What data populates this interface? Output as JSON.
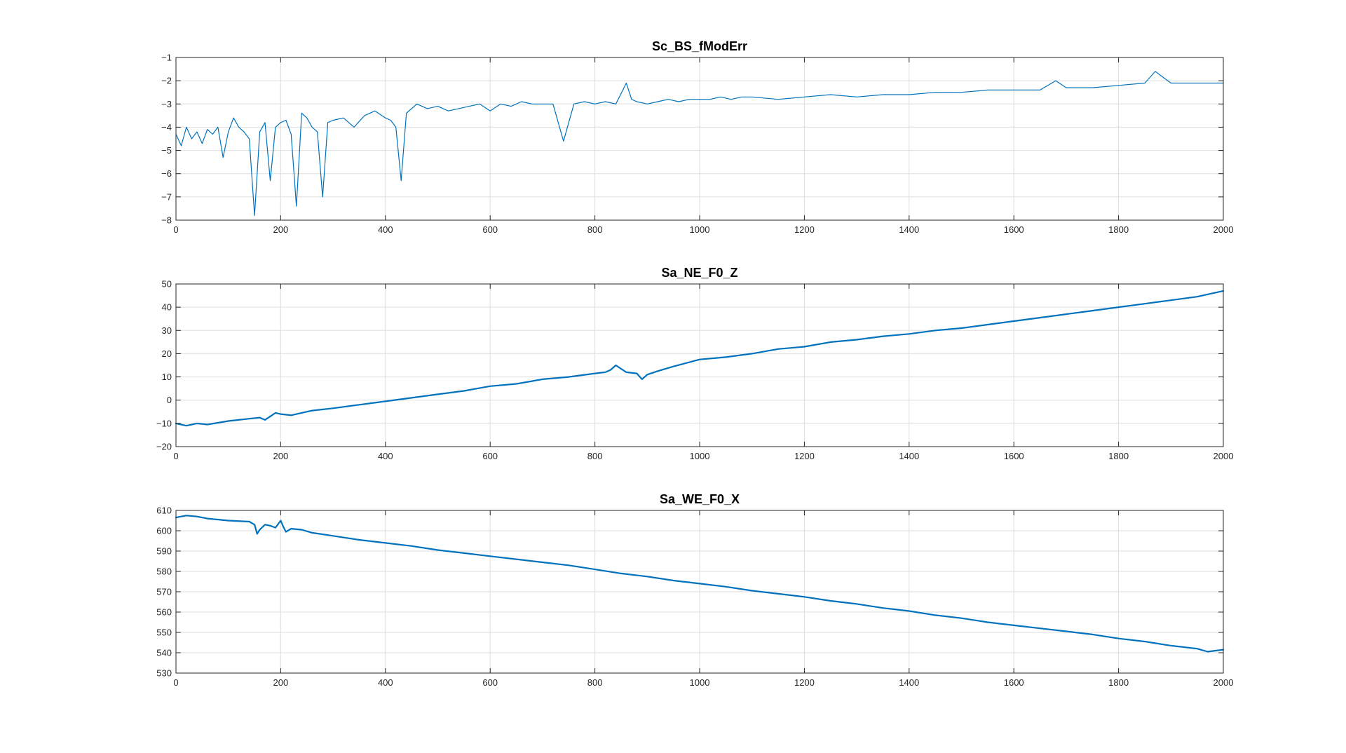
{
  "figure": {
    "background": "#ffffff",
    "line_color": "#0072bd",
    "axis_color": "#262626",
    "grid_color": "#dedede"
  },
  "chart_data": [
    {
      "type": "line",
      "title": "Sc_BS_fModErr",
      "xlabel": "",
      "ylabel": "",
      "xlim": [
        0,
        2000
      ],
      "ylim": [
        -8,
        -1
      ],
      "xticks": [
        0,
        200,
        400,
        600,
        800,
        1000,
        1200,
        1400,
        1600,
        1800,
        2000
      ],
      "yticks": [
        -8,
        -7,
        -6,
        -5,
        -4,
        -3,
        -2,
        -1
      ],
      "grid": true,
      "line_width": 1.2,
      "series": [
        {
          "x": [
            0,
            10,
            20,
            30,
            40,
            50,
            60,
            70,
            80,
            90,
            100,
            110,
            120,
            130,
            140,
            150,
            160,
            170,
            180,
            190,
            200,
            210,
            220,
            230,
            240,
            250,
            260,
            270,
            280,
            290,
            300,
            320,
            340,
            360,
            380,
            400,
            410,
            420,
            430,
            440,
            460,
            480,
            500,
            520,
            540,
            560,
            580,
            600,
            620,
            640,
            660,
            680,
            700,
            720,
            740,
            760,
            780,
            800,
            820,
            840,
            860,
            870,
            880,
            900,
            920,
            940,
            960,
            980,
            1000,
            1020,
            1040,
            1060,
            1080,
            1100,
            1150,
            1200,
            1250,
            1300,
            1350,
            1400,
            1450,
            1500,
            1550,
            1600,
            1650,
            1680,
            1700,
            1750,
            1800,
            1850,
            1870,
            1900,
            1950,
            2000
          ],
          "y": [
            -4.3,
            -4.8,
            -4.0,
            -4.5,
            -4.2,
            -4.7,
            -4.1,
            -4.3,
            -4.0,
            -5.3,
            -4.2,
            -3.6,
            -4.0,
            -4.2,
            -4.5,
            -7.8,
            -4.2,
            -3.8,
            -6.3,
            -4.0,
            -3.8,
            -3.7,
            -4.3,
            -7.4,
            -3.4,
            -3.6,
            -4.0,
            -4.2,
            -7.0,
            -3.8,
            -3.7,
            -3.6,
            -4.0,
            -3.5,
            -3.3,
            -3.6,
            -3.7,
            -4.0,
            -6.3,
            -3.4,
            -3.0,
            -3.2,
            -3.1,
            -3.3,
            -3.2,
            -3.1,
            -3.0,
            -3.3,
            -3.0,
            -3.1,
            -2.9,
            -3.0,
            -3.0,
            -3.0,
            -4.6,
            -3.0,
            -2.9,
            -3.0,
            -2.9,
            -3.0,
            -2.1,
            -2.8,
            -2.9,
            -3.0,
            -2.9,
            -2.8,
            -2.9,
            -2.8,
            -2.8,
            -2.8,
            -2.7,
            -2.8,
            -2.7,
            -2.7,
            -2.8,
            -2.7,
            -2.6,
            -2.7,
            -2.6,
            -2.6,
            -2.5,
            -2.5,
            -2.4,
            -2.4,
            -2.4,
            -2.0,
            -2.3,
            -2.3,
            -2.2,
            -2.1,
            -1.6,
            -2.1,
            -2.1,
            -2.1
          ]
        }
      ]
    },
    {
      "type": "line",
      "title": "Sa_NE_F0_Z",
      "xlabel": "",
      "ylabel": "",
      "xlim": [
        0,
        2000
      ],
      "ylim": [
        -20,
        50
      ],
      "xticks": [
        0,
        200,
        400,
        600,
        800,
        1000,
        1200,
        1400,
        1600,
        1800,
        2000
      ],
      "yticks": [
        -20,
        -10,
        0,
        10,
        20,
        30,
        40,
        50
      ],
      "grid": true,
      "line_width": 2.2,
      "series": [
        {
          "x": [
            0,
            20,
            40,
            60,
            100,
            140,
            160,
            170,
            180,
            190,
            200,
            220,
            260,
            300,
            350,
            400,
            450,
            500,
            550,
            600,
            650,
            700,
            750,
            800,
            820,
            830,
            840,
            850,
            860,
            880,
            890,
            900,
            920,
            950,
            1000,
            1050,
            1100,
            1150,
            1200,
            1250,
            1300,
            1350,
            1400,
            1450,
            1500,
            1550,
            1600,
            1650,
            1700,
            1750,
            1800,
            1850,
            1900,
            1950,
            2000
          ],
          "y": [
            -10,
            -11,
            -10,
            -10.5,
            -9,
            -8,
            -7.5,
            -8.5,
            -7,
            -5.5,
            -6,
            -6.5,
            -4.5,
            -3.5,
            -2,
            -0.5,
            1,
            2.5,
            4,
            6,
            7,
            9,
            10,
            11.5,
            12,
            13,
            15,
            13.5,
            12,
            11.5,
            9,
            11,
            12.5,
            14.5,
            17.5,
            18.5,
            20,
            22,
            23,
            25,
            26,
            27.5,
            28.5,
            30,
            31,
            32.5,
            34,
            35.5,
            37,
            38.5,
            40,
            41.5,
            43,
            44.5,
            47
          ]
        }
      ]
    },
    {
      "type": "line",
      "title": "Sa_WE_F0_X",
      "xlabel": "",
      "ylabel": "",
      "xlim": [
        0,
        2000
      ],
      "ylim": [
        530,
        610
      ],
      "xticks": [
        0,
        200,
        400,
        600,
        800,
        1000,
        1200,
        1400,
        1600,
        1800,
        2000
      ],
      "yticks": [
        530,
        540,
        550,
        560,
        570,
        580,
        590,
        600,
        610
      ],
      "grid": true,
      "line_width": 2.2,
      "series": [
        {
          "x": [
            0,
            20,
            40,
            60,
            100,
            140,
            150,
            155,
            160,
            170,
            180,
            190,
            200,
            205,
            210,
            220,
            240,
            260,
            300,
            350,
            400,
            450,
            500,
            550,
            600,
            650,
            700,
            750,
            800,
            850,
            900,
            950,
            1000,
            1050,
            1100,
            1150,
            1200,
            1250,
            1300,
            1350,
            1400,
            1450,
            1500,
            1550,
            1600,
            1650,
            1700,
            1750,
            1800,
            1850,
            1900,
            1950,
            1970,
            2000
          ],
          "y": [
            606.5,
            607.5,
            607,
            606,
            605,
            604.5,
            603,
            598.5,
            600.5,
            603,
            602.5,
            601.5,
            605,
            602,
            599.5,
            601,
            600.5,
            599,
            597.5,
            595.5,
            594,
            592.5,
            590.5,
            589,
            587.5,
            586,
            584.5,
            583,
            581,
            579,
            577.5,
            575.5,
            574,
            572.5,
            570.5,
            569,
            567.5,
            565.5,
            564,
            562,
            560.5,
            558.5,
            557,
            555,
            553.5,
            552,
            550.5,
            549,
            547,
            545.5,
            543.5,
            542,
            540.5,
            541.5
          ]
        }
      ]
    }
  ]
}
